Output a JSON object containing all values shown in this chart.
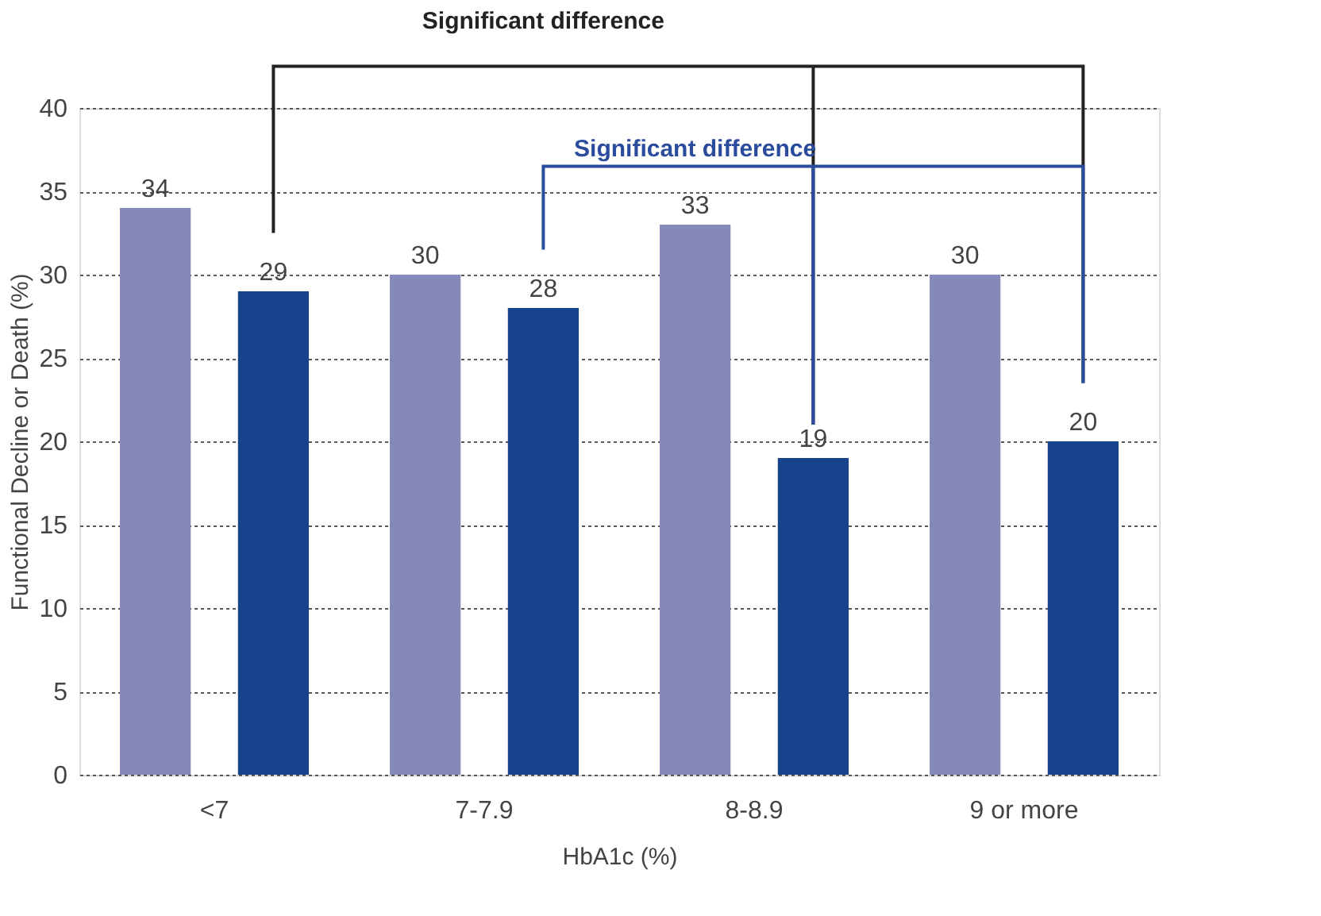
{
  "chart_data": {
    "type": "bar",
    "xlabel": "HbA1c (%)",
    "ylabel": "Functional Decline or Death (%)",
    "categories": [
      "<7",
      "7-7.9",
      "8-8.9",
      "9 or more"
    ],
    "series": [
      {
        "color": "#8489b9",
        "values": [
          34,
          30,
          33,
          30
        ]
      },
      {
        "color": "#17428c",
        "values": [
          29,
          28,
          19,
          20
        ]
      }
    ],
    "ylim": [
      0,
      40
    ],
    "yticks": [
      0,
      5,
      10,
      15,
      20,
      25,
      30,
      35,
      40
    ],
    "grid": "y",
    "data_labels": true,
    "legend": false,
    "annotations": [
      "Significant difference",
      "Significant difference"
    ]
  }
}
